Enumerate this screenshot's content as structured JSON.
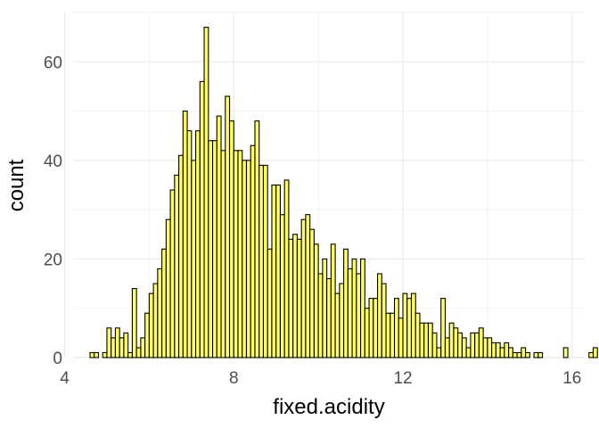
{
  "chart_data": {
    "type": "bar",
    "subtype": "histogram",
    "title": "",
    "xlabel": "fixed.acidity",
    "ylabel": "count",
    "bin_width": 0.1,
    "bin_start": 4.6,
    "xlim": [
      4.2,
      16.3
    ],
    "ylim": [
      0,
      70
    ],
    "xticks": [
      4,
      8,
      12,
      16
    ],
    "yticks": [
      0,
      20,
      40,
      60
    ],
    "grid": true,
    "fill_color": "#ffff66",
    "edge_color": "#000000",
    "counts": [
      1,
      1,
      0,
      1,
      6,
      4,
      6,
      4,
      5,
      1,
      14,
      2,
      4,
      9,
      13,
      15,
      18,
      22,
      28,
      34,
      37,
      41,
      50,
      46,
      40,
      46,
      56,
      67,
      44,
      44,
      49,
      42,
      53,
      48,
      42,
      42,
      40,
      40,
      43,
      48,
      39,
      39,
      22,
      35,
      35,
      29,
      36,
      24,
      25,
      24,
      28,
      29,
      26,
      23,
      17,
      20,
      16,
      23,
      13,
      15,
      22,
      18,
      20,
      17,
      20,
      10,
      12,
      12,
      17,
      15,
      9,
      9,
      12,
      8,
      13,
      12,
      13,
      9,
      7,
      7,
      7,
      5,
      2,
      12,
      4,
      7,
      6,
      5,
      4,
      2,
      5,
      5,
      6,
      4,
      4,
      3,
      3,
      2,
      3,
      2,
      1,
      1,
      2,
      1,
      0,
      1,
      1,
      0,
      0,
      0,
      0,
      0,
      2,
      0,
      0,
      0,
      0,
      0,
      1,
      2,
      0,
      0,
      0,
      1
    ]
  }
}
